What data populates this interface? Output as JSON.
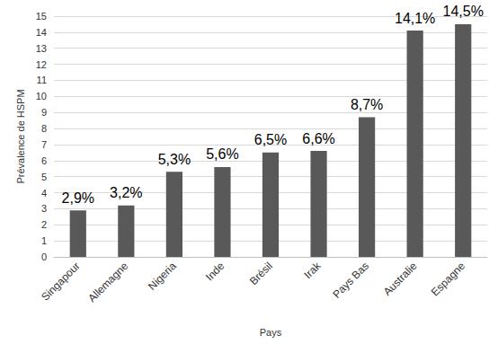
{
  "chart_data": {
    "type": "bar",
    "x_label": "Pays",
    "y_label": "Prévalence de HSPM",
    "categories": [
      "Singapour",
      "Allemagne",
      "Nigeria",
      "Inde",
      "Brésil",
      "Irak",
      "Pays Bas",
      "Australie",
      "Espagne"
    ],
    "values": [
      2.9,
      3.2,
      5.3,
      5.6,
      6.5,
      6.6,
      8.7,
      14.1,
      14.5
    ],
    "value_labels": [
      "2,9%",
      "3,2%",
      "5,3%",
      "5,6%",
      "6,5%",
      "6,6%",
      "8,7%",
      "14,1%",
      "14,5%"
    ],
    "color": "#595959",
    "ylim": [
      0,
      15
    ],
    "yticks": [
      0,
      1,
      2,
      3,
      4,
      5,
      6,
      7,
      8,
      9,
      10,
      11,
      12,
      13,
      14,
      15
    ],
    "grid": true,
    "data_labels": true
  }
}
